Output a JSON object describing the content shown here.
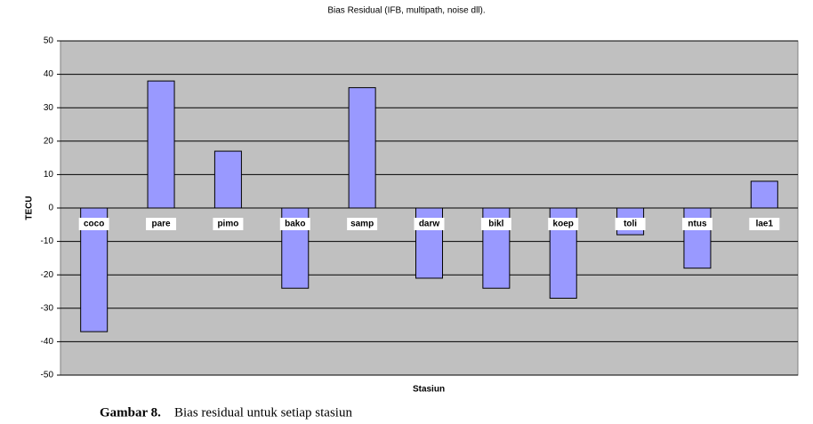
{
  "chart_data": {
    "type": "bar",
    "title": "Bias Residual (IFB, multipath, noise dll).",
    "x_label": "Stasiun",
    "y_label": "TECU",
    "categories": [
      "coco",
      "pare",
      "pimo",
      "bako",
      "samp",
      "darw",
      "bikl",
      "koep",
      "toli",
      "ntus",
      "lae1"
    ],
    "values": [
      -37,
      38,
      17,
      -24,
      36,
      -21,
      -24,
      -27,
      -8,
      -18,
      8
    ],
    "color": "#9999ff",
    "ylim": [
      -50,
      50
    ],
    "yticks": [
      -50,
      -40,
      -30,
      -20,
      -10,
      0,
      10,
      20,
      30,
      40,
      50
    ],
    "grid": true
  },
  "caption": {
    "label": "Gambar 8.",
    "text": "Bias residual untuk setiap stasiun"
  }
}
